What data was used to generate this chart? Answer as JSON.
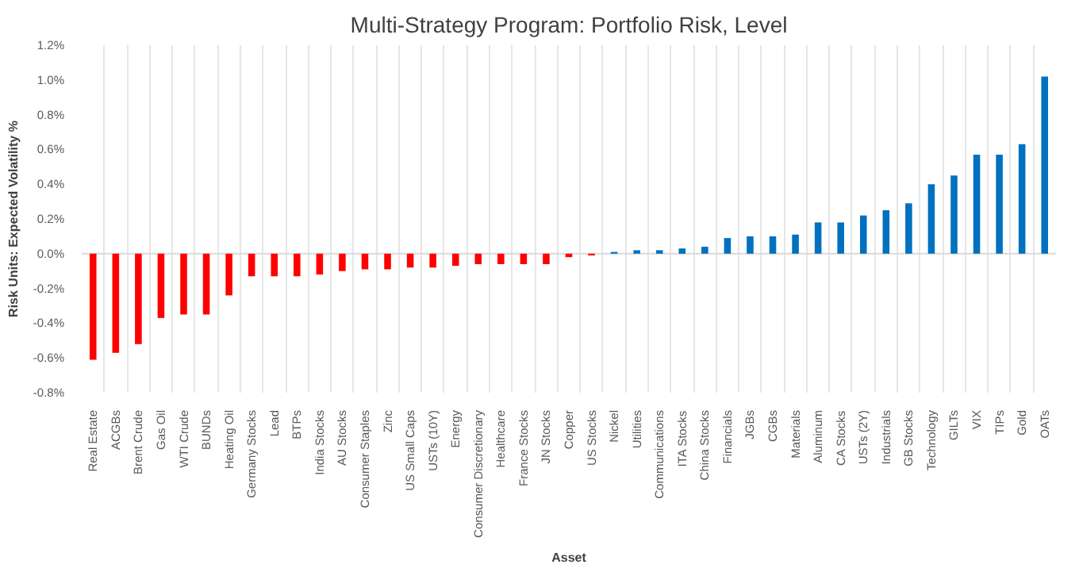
{
  "chart_data": {
    "type": "bar",
    "title": "Multi-Strategy Program: Portfolio Risk, Level",
    "xlabel": "Asset",
    "ylabel": "Risk Units: Expected Volatility %",
    "categories": [
      "Real Estate",
      "ACGBs",
      "Brent Crude",
      "Gas Oil",
      "WTI Crude",
      "BUNDs",
      "Heating Oil",
      "Germany Stocks",
      "Lead",
      "BTPs",
      "India Stocks",
      "AU Stocks",
      "Consumer Staples",
      "Zinc",
      "US Small Caps",
      "USTs (10Y)",
      "Energy",
      "Consumer Discretionary",
      "Healthcare",
      "France Stocks",
      "JN Stocks",
      "Copper",
      "US Stocks",
      "Nickel",
      "Utilities",
      "Communications",
      "ITA Stocks",
      "China Stocks",
      "Financials",
      "JGBs",
      "CGBs",
      "Materials",
      "Aluminum",
      "CA Stocks",
      "USTs (2Y)",
      "Industrials",
      "GB Stocks",
      "Technology",
      "GILTs",
      "VIX",
      "TIPs",
      "Gold",
      "OATs"
    ],
    "values": [
      -0.61,
      -0.57,
      -0.52,
      -0.37,
      -0.35,
      -0.35,
      -0.24,
      -0.13,
      -0.13,
      -0.13,
      -0.12,
      -0.1,
      -0.09,
      -0.09,
      -0.08,
      -0.08,
      -0.07,
      -0.06,
      -0.06,
      -0.06,
      -0.06,
      -0.02,
      -0.01,
      0.01,
      0.02,
      0.02,
      0.03,
      0.04,
      0.09,
      0.1,
      0.1,
      0.11,
      0.18,
      0.18,
      0.22,
      0.25,
      0.29,
      0.4,
      0.45,
      0.57,
      0.57,
      0.63,
      1.02
    ],
    "colors": [
      "#ff0000",
      "#ff0000",
      "#ff0000",
      "#ff0000",
      "#ff0000",
      "#ff0000",
      "#ff0000",
      "#ff0000",
      "#ff0000",
      "#ff0000",
      "#ff0000",
      "#ff0000",
      "#ff0000",
      "#ff0000",
      "#ff0000",
      "#ff0000",
      "#ff0000",
      "#ff0000",
      "#ff0000",
      "#ff0000",
      "#ff0000",
      "#ff0000",
      "#ff0000",
      "#0070c0",
      "#0070c0",
      "#0070c0",
      "#0070c0",
      "#0070c0",
      "#0070c0",
      "#0070c0",
      "#0070c0",
      "#0070c0",
      "#0070c0",
      "#0070c0",
      "#0070c0",
      "#0070c0",
      "#0070c0",
      "#0070c0",
      "#0070c0",
      "#0070c0",
      "#0070c0",
      "#0070c0",
      "#0070c0"
    ],
    "ylim": [
      -0.8,
      1.2
    ],
    "yticks": [
      {
        "value": -0.8,
        "label": "-0.8%"
      },
      {
        "value": -0.6,
        "label": "-0.6%"
      },
      {
        "value": -0.4,
        "label": "-0.4%"
      },
      {
        "value": -0.2,
        "label": "-0.2%"
      },
      {
        "value": 0,
        "label": "0.0%"
      },
      {
        "value": 0.2,
        "label": "0.2%"
      },
      {
        "value": 0.4,
        "label": "0.4%"
      },
      {
        "value": 0.6,
        "label": "0.6%"
      },
      {
        "value": 0.8,
        "label": "0.8%"
      },
      {
        "value": 1.0,
        "label": "1.0%"
      },
      {
        "value": 1.2,
        "label": "1.2%"
      }
    ],
    "grid": "x"
  }
}
